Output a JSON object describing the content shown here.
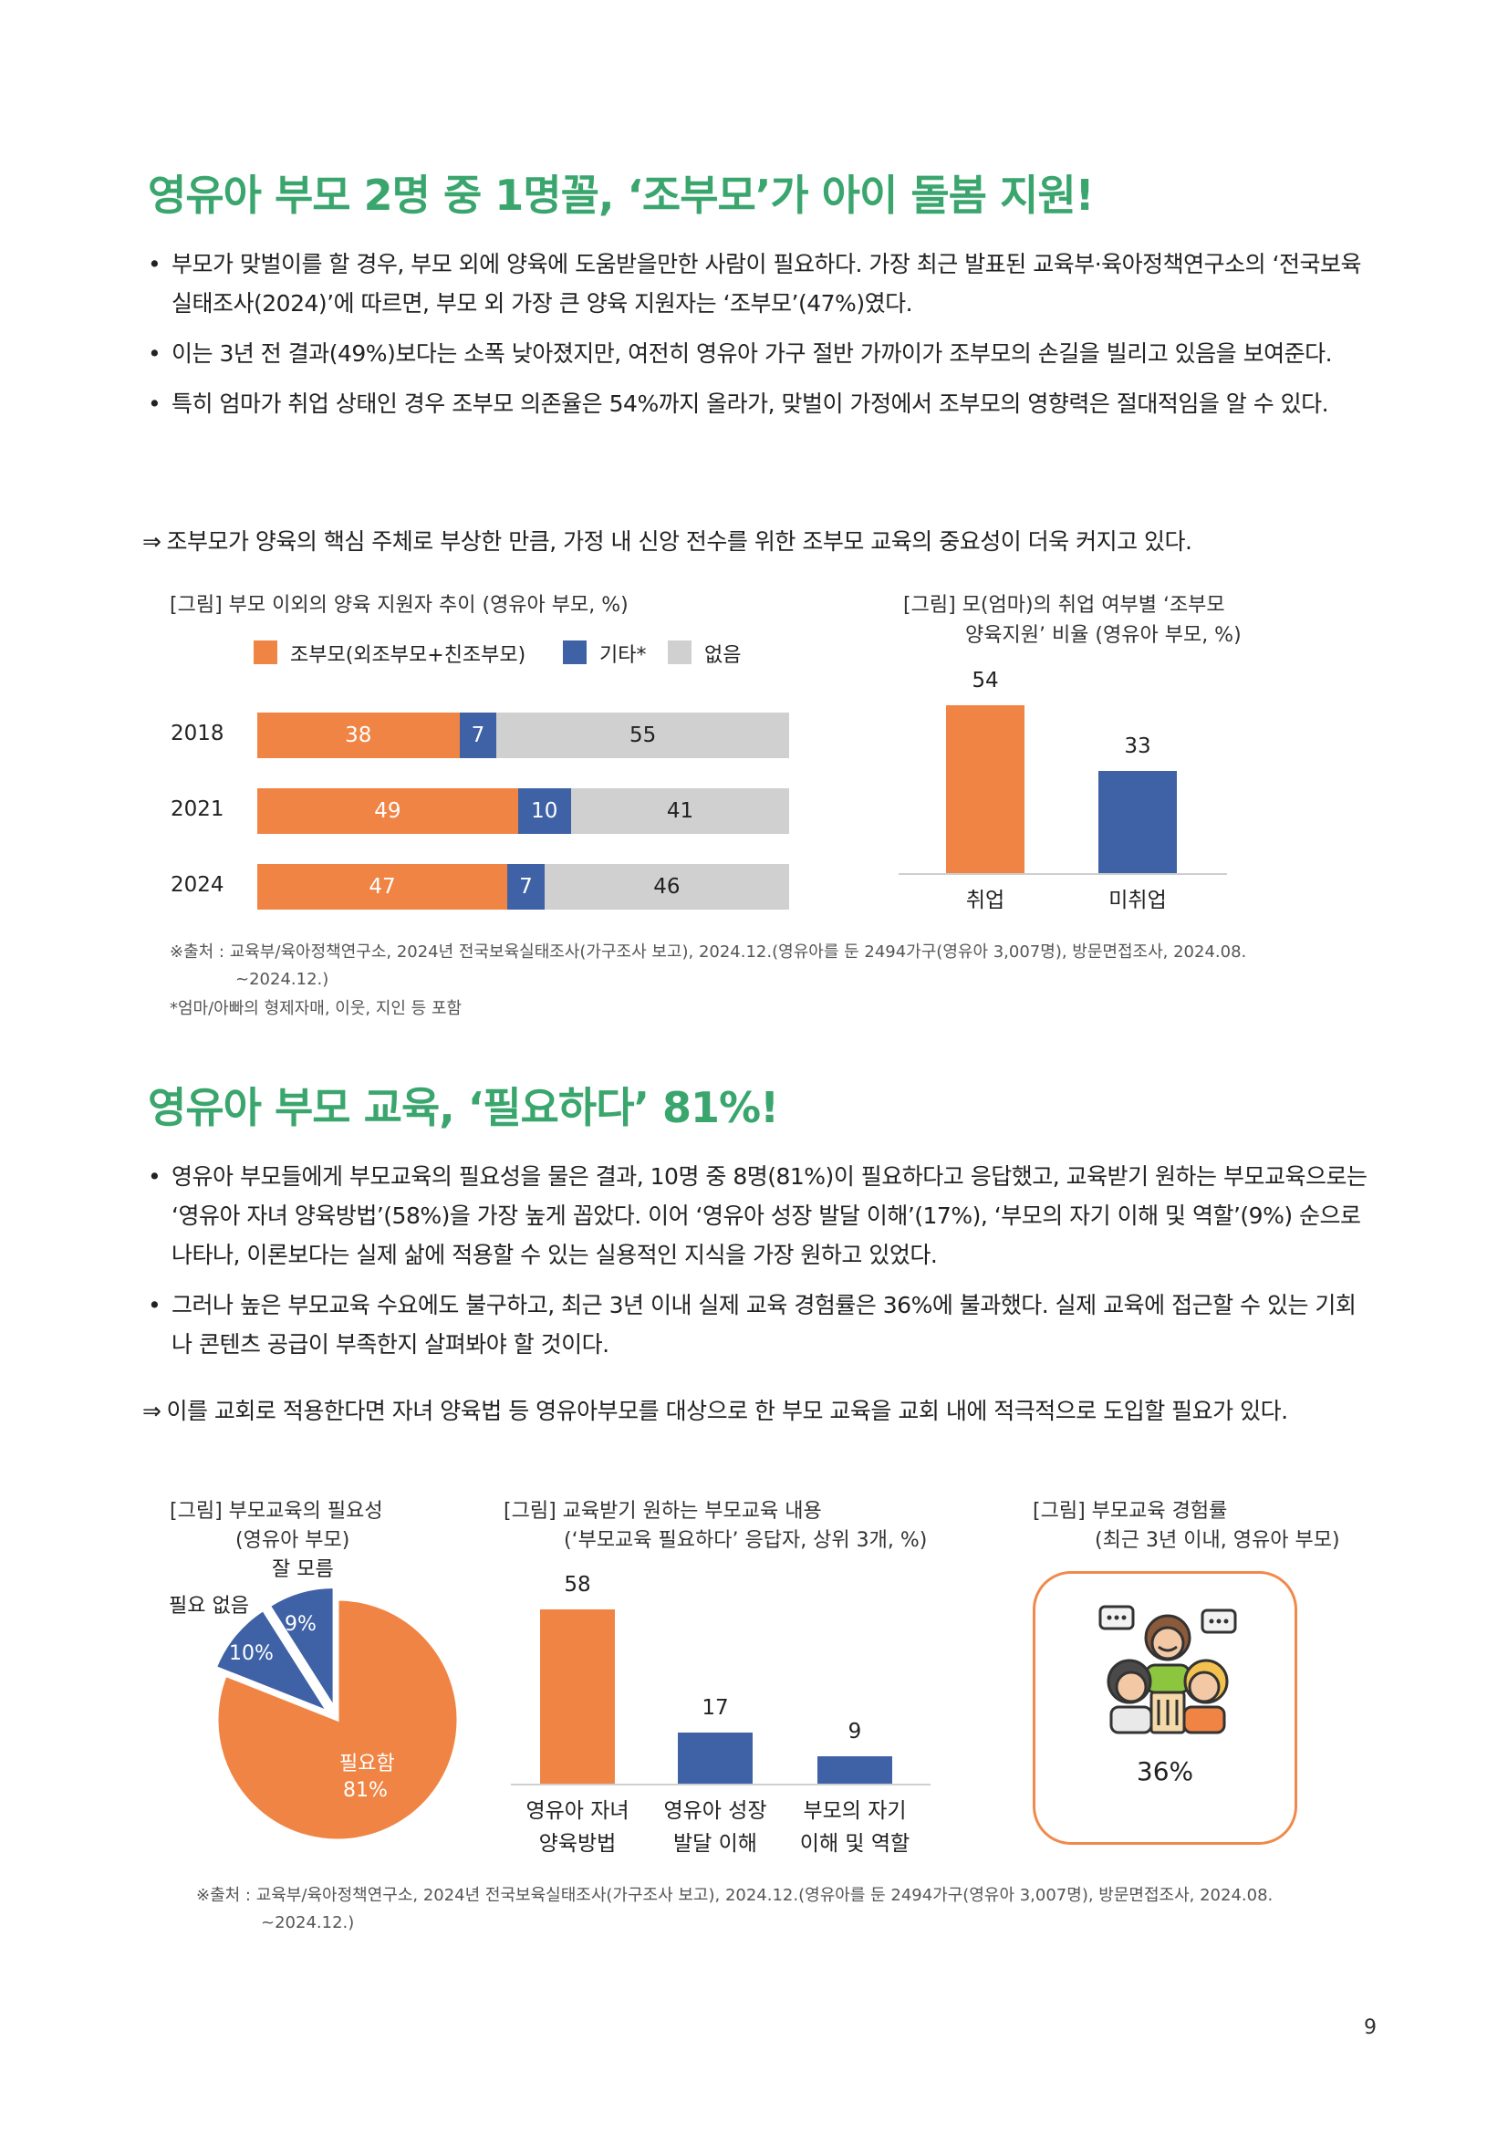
{
  "colors": {
    "heading": "#3aa66e",
    "orange": "#f08444",
    "blue": "#3f62a6",
    "gray": "#d0d0d0",
    "box_border": "#f08a4b"
  },
  "section1": {
    "heading": "영유아 부모 2명 중 1명꼴, ‘조부모’가 아이 돌봄 지원!",
    "bullets": [
      "부모가 맞벌이를 할 경우, 부모 외에 양육에 도움받을만한 사람이 필요하다. 가장 최근 발표된 교육부·육아정책연구소의 ‘전국보육실태조사(2024)’에 따르면, 부모 외 가장 큰 양육 지원자는 ‘조부모’(47%)였다.",
      "이는 3년 전 결과(49%)보다는 소폭 낮아졌지만, 여전히 영유아 가구 절반 가까이가 조부모의 손길을 빌리고 있음을 보여준다.",
      "특히 엄마가 취업 상태인 경우 조부모 의존율은 54%까지 올라가, 맞벌이 가정에서 조부모의 영향력은 절대적임을 알 수 있다."
    ],
    "arrow": "⇒",
    "conclusion": "조부모가 양육의 핵심 주체로 부상한 만큼, 가정 내 신앙 전수를 위한 조부모 교육의 중요성이 더욱 커지고 있다.",
    "source": "※출처 : 교육부/육아정책연구소, 2024년 전국보육실태조사(가구조사 보고), 2024.12.(영유아를 둔 2494가구(영유아 3,007명), 방문면접조사, 2024.08.",
    "source_cont": "~2024.12.)",
    "note": "*엄마/아빠의 형제자매, 이웃, 지인 등 포함"
  },
  "section2": {
    "heading": "영유아 부모 교육, ‘필요하다’ 81%!",
    "bullets": [
      "영유아 부모들에게 부모교육의 필요성을 물은 결과, 10명 중 8명(81%)이 필요하다고 응답했고, 교육받기 원하는 부모교육으로는 ‘영유아 자녀 양육방법’(58%)을 가장 높게 꼽았다. 이어 ‘영유아 성장 발달 이해’(17%), ‘부모의 자기 이해 및 역할’(9%) 순으로 나타나, 이론보다는 실제 삶에 적용할 수 있는 실용적인 지식을 가장 원하고 있었다.",
      "그러나 높은 부모교육 수요에도 불구하고, 최근 3년 이내 실제 교육 경험률은 36%에 불과했다. 실제 교육에 접근할 수 있는 기회나 콘텐츠 공급이 부족한지 살펴봐야 할 것이다."
    ],
    "arrow": "⇒",
    "conclusion": "이를 교회로 적용한다면 자녀 양육법 등 영유아부모를 대상으로 한 부모 교육을 교회 내에 적극적으로 도입할 필요가 있다.",
    "source": "※출처 : 교육부/육아정책연구소, 2024년 전국보육실태조사(가구조사 보고), 2024.12.(영유아를 둔 2494가구(영유아 3,007명), 방문면접조사, 2024.08.",
    "source_cont": "~2024.12.)"
  },
  "chart_data": [
    {
      "type": "bar",
      "orientation": "horizontal-stacked",
      "title": "[그림] 부모 이외의 양육 지원자 추이 (영유아 부모, %)",
      "categories": [
        "2018",
        "2021",
        "2024"
      ],
      "series": [
        {
          "name": "조부모(외조부모+친조부모)",
          "values": [
            38,
            49,
            47
          ],
          "color": "#f08444"
        },
        {
          "name": "기타*",
          "values": [
            7,
            10,
            7
          ],
          "color": "#3f62a6"
        },
        {
          "name": "없음",
          "values": [
            55,
            41,
            46
          ],
          "color": "#d0d0d0"
        }
      ],
      "legend": "top"
    },
    {
      "type": "bar",
      "title_line1": "[그림] 모(엄마)의 취업 여부별 ‘조부모",
      "title_line2": "양육지원’ 비율 (영유아 부모, %)",
      "categories": [
        "취업",
        "미취업"
      ],
      "values": [
        54,
        33
      ],
      "colors": [
        "#f08444",
        "#3f62a6"
      ]
    },
    {
      "type": "pie",
      "title_line1": "[그림] 부모교육의 필요성",
      "title_line2": "(영유아 부모)",
      "labels": [
        "필요함",
        "필요 없음",
        "잘 모름"
      ],
      "values": [
        81,
        10,
        9
      ],
      "value_labels": [
        "81%",
        "10%",
        "9%"
      ],
      "colors": [
        "#f08444",
        "#3f62a6",
        "#3f62a6"
      ]
    },
    {
      "type": "bar",
      "title_line1": "[그림] 교육받기 원하는 부모교육 내용",
      "title_line2": "(‘부모교육 필요하다’ 응답자, 상위 3개, %)",
      "categories_line1": [
        "영유아 자녀",
        "영유아 성장",
        "부모의 자기"
      ],
      "categories_line2": [
        "양육방법",
        "발달 이해",
        "이해 및 역할"
      ],
      "values": [
        58,
        17,
        9
      ],
      "colors": [
        "#f08444",
        "#3f62a6",
        "#3f62a6"
      ]
    }
  ],
  "experience": {
    "title_line1": "[그림] 부모교육 경험률",
    "title_line2": "(최근 3년 이내, 영유아 부모)",
    "icon": "parents-education-icon",
    "value": "36%"
  },
  "page_number": "9"
}
